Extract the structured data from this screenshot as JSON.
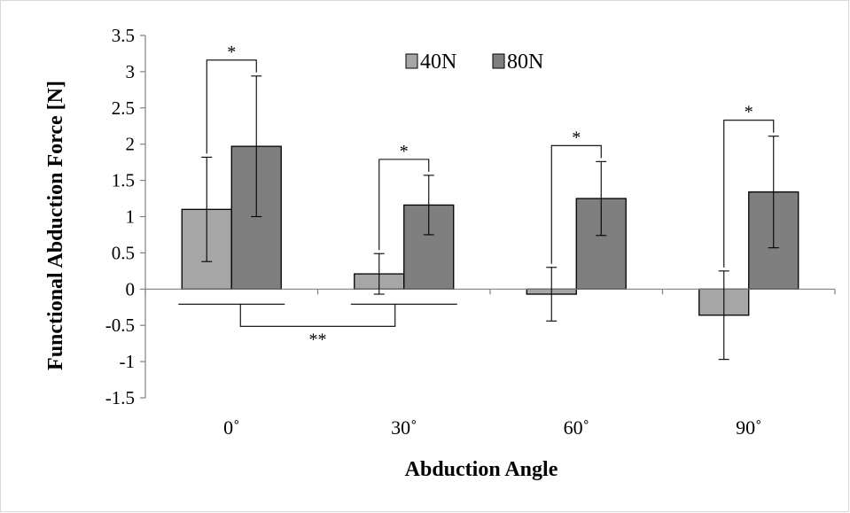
{
  "chart_data": {
    "type": "bar",
    "xlabel": "Abduction Angle",
    "ylabel": "Functional Abduction Force [N]",
    "categories": [
      "0˚",
      "30˚",
      "60˚",
      "90˚"
    ],
    "ylim": [
      -1.5,
      3.5
    ],
    "yticks": [
      -1.5,
      -1,
      -0.5,
      0,
      0.5,
      1,
      1.5,
      2,
      2.5,
      3,
      3.5
    ],
    "ytick_labels": [
      "-1.5",
      "-1",
      "-0.5",
      "0",
      "0.5",
      "1",
      "1.5",
      "2",
      "2.5",
      "3",
      "3.5"
    ],
    "series": [
      {
        "name": "40N",
        "color": "#a6a6a6",
        "values": [
          1.1,
          0.21,
          -0.07,
          -0.36
        ],
        "errors": [
          0.72,
          0.28,
          0.37,
          0.61
        ]
      },
      {
        "name": "80N",
        "color": "#7f7f7f",
        "values": [
          1.97,
          1.16,
          1.25,
          1.34
        ],
        "errors": [
          0.97,
          0.41,
          0.51,
          0.77
        ]
      }
    ],
    "legend": {
      "position": "top-center",
      "entries": [
        "40N",
        "80N"
      ]
    },
    "grid": false,
    "annotations": [
      {
        "type": "significance",
        "text": "*",
        "between": "40N-80N",
        "category": "0˚"
      },
      {
        "type": "significance",
        "text": "*",
        "between": "40N-80N",
        "category": "30˚"
      },
      {
        "type": "significance",
        "text": "*",
        "between": "40N-80N",
        "category": "60˚"
      },
      {
        "type": "significance",
        "text": "*",
        "between": "40N-80N",
        "category": "90˚"
      },
      {
        "type": "significance",
        "text": "**",
        "between_categories": [
          "0˚",
          "30˚"
        ]
      }
    ]
  }
}
